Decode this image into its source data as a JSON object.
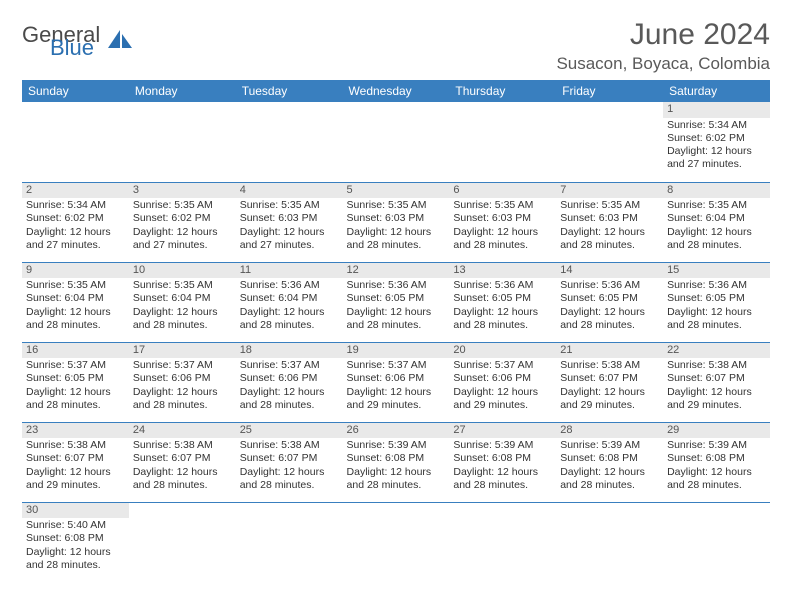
{
  "logo": {
    "general": "General",
    "blue": "Blue"
  },
  "title": "June 2024",
  "location": "Susacon, Boyaca, Colombia",
  "colors": {
    "header_bg": "#397fbf",
    "header_text": "#ffffff",
    "daynum_bg": "#e9e9e9",
    "text": "#333333",
    "title_color": "#595959"
  },
  "day_headers": [
    "Sunday",
    "Monday",
    "Tuesday",
    "Wednesday",
    "Thursday",
    "Friday",
    "Saturday"
  ],
  "weeks": [
    [
      null,
      null,
      null,
      null,
      null,
      null,
      {
        "n": "1",
        "sr": "Sunrise: 5:34 AM",
        "ss": "Sunset: 6:02 PM",
        "dl1": "Daylight: 12 hours",
        "dl2": "and 27 minutes."
      }
    ],
    [
      {
        "n": "2",
        "sr": "Sunrise: 5:34 AM",
        "ss": "Sunset: 6:02 PM",
        "dl1": "Daylight: 12 hours",
        "dl2": "and 27 minutes."
      },
      {
        "n": "3",
        "sr": "Sunrise: 5:35 AM",
        "ss": "Sunset: 6:02 PM",
        "dl1": "Daylight: 12 hours",
        "dl2": "and 27 minutes."
      },
      {
        "n": "4",
        "sr": "Sunrise: 5:35 AM",
        "ss": "Sunset: 6:03 PM",
        "dl1": "Daylight: 12 hours",
        "dl2": "and 27 minutes."
      },
      {
        "n": "5",
        "sr": "Sunrise: 5:35 AM",
        "ss": "Sunset: 6:03 PM",
        "dl1": "Daylight: 12 hours",
        "dl2": "and 28 minutes."
      },
      {
        "n": "6",
        "sr": "Sunrise: 5:35 AM",
        "ss": "Sunset: 6:03 PM",
        "dl1": "Daylight: 12 hours",
        "dl2": "and 28 minutes."
      },
      {
        "n": "7",
        "sr": "Sunrise: 5:35 AM",
        "ss": "Sunset: 6:03 PM",
        "dl1": "Daylight: 12 hours",
        "dl2": "and 28 minutes."
      },
      {
        "n": "8",
        "sr": "Sunrise: 5:35 AM",
        "ss": "Sunset: 6:04 PM",
        "dl1": "Daylight: 12 hours",
        "dl2": "and 28 minutes."
      }
    ],
    [
      {
        "n": "9",
        "sr": "Sunrise: 5:35 AM",
        "ss": "Sunset: 6:04 PM",
        "dl1": "Daylight: 12 hours",
        "dl2": "and 28 minutes."
      },
      {
        "n": "10",
        "sr": "Sunrise: 5:35 AM",
        "ss": "Sunset: 6:04 PM",
        "dl1": "Daylight: 12 hours",
        "dl2": "and 28 minutes."
      },
      {
        "n": "11",
        "sr": "Sunrise: 5:36 AM",
        "ss": "Sunset: 6:04 PM",
        "dl1": "Daylight: 12 hours",
        "dl2": "and 28 minutes."
      },
      {
        "n": "12",
        "sr": "Sunrise: 5:36 AM",
        "ss": "Sunset: 6:05 PM",
        "dl1": "Daylight: 12 hours",
        "dl2": "and 28 minutes."
      },
      {
        "n": "13",
        "sr": "Sunrise: 5:36 AM",
        "ss": "Sunset: 6:05 PM",
        "dl1": "Daylight: 12 hours",
        "dl2": "and 28 minutes."
      },
      {
        "n": "14",
        "sr": "Sunrise: 5:36 AM",
        "ss": "Sunset: 6:05 PM",
        "dl1": "Daylight: 12 hours",
        "dl2": "and 28 minutes."
      },
      {
        "n": "15",
        "sr": "Sunrise: 5:36 AM",
        "ss": "Sunset: 6:05 PM",
        "dl1": "Daylight: 12 hours",
        "dl2": "and 28 minutes."
      }
    ],
    [
      {
        "n": "16",
        "sr": "Sunrise: 5:37 AM",
        "ss": "Sunset: 6:05 PM",
        "dl1": "Daylight: 12 hours",
        "dl2": "and 28 minutes."
      },
      {
        "n": "17",
        "sr": "Sunrise: 5:37 AM",
        "ss": "Sunset: 6:06 PM",
        "dl1": "Daylight: 12 hours",
        "dl2": "and 28 minutes."
      },
      {
        "n": "18",
        "sr": "Sunrise: 5:37 AM",
        "ss": "Sunset: 6:06 PM",
        "dl1": "Daylight: 12 hours",
        "dl2": "and 28 minutes."
      },
      {
        "n": "19",
        "sr": "Sunrise: 5:37 AM",
        "ss": "Sunset: 6:06 PM",
        "dl1": "Daylight: 12 hours",
        "dl2": "and 29 minutes."
      },
      {
        "n": "20",
        "sr": "Sunrise: 5:37 AM",
        "ss": "Sunset: 6:06 PM",
        "dl1": "Daylight: 12 hours",
        "dl2": "and 29 minutes."
      },
      {
        "n": "21",
        "sr": "Sunrise: 5:38 AM",
        "ss": "Sunset: 6:07 PM",
        "dl1": "Daylight: 12 hours",
        "dl2": "and 29 minutes."
      },
      {
        "n": "22",
        "sr": "Sunrise: 5:38 AM",
        "ss": "Sunset: 6:07 PM",
        "dl1": "Daylight: 12 hours",
        "dl2": "and 29 minutes."
      }
    ],
    [
      {
        "n": "23",
        "sr": "Sunrise: 5:38 AM",
        "ss": "Sunset: 6:07 PM",
        "dl1": "Daylight: 12 hours",
        "dl2": "and 29 minutes."
      },
      {
        "n": "24",
        "sr": "Sunrise: 5:38 AM",
        "ss": "Sunset: 6:07 PM",
        "dl1": "Daylight: 12 hours",
        "dl2": "and 28 minutes."
      },
      {
        "n": "25",
        "sr": "Sunrise: 5:38 AM",
        "ss": "Sunset: 6:07 PM",
        "dl1": "Daylight: 12 hours",
        "dl2": "and 28 minutes."
      },
      {
        "n": "26",
        "sr": "Sunrise: 5:39 AM",
        "ss": "Sunset: 6:08 PM",
        "dl1": "Daylight: 12 hours",
        "dl2": "and 28 minutes."
      },
      {
        "n": "27",
        "sr": "Sunrise: 5:39 AM",
        "ss": "Sunset: 6:08 PM",
        "dl1": "Daylight: 12 hours",
        "dl2": "and 28 minutes."
      },
      {
        "n": "28",
        "sr": "Sunrise: 5:39 AM",
        "ss": "Sunset: 6:08 PM",
        "dl1": "Daylight: 12 hours",
        "dl2": "and 28 minutes."
      },
      {
        "n": "29",
        "sr": "Sunrise: 5:39 AM",
        "ss": "Sunset: 6:08 PM",
        "dl1": "Daylight: 12 hours",
        "dl2": "and 28 minutes."
      }
    ],
    [
      {
        "n": "30",
        "sr": "Sunrise: 5:40 AM",
        "ss": "Sunset: 6:08 PM",
        "dl1": "Daylight: 12 hours",
        "dl2": "and 28 minutes."
      },
      null,
      null,
      null,
      null,
      null,
      null
    ]
  ]
}
